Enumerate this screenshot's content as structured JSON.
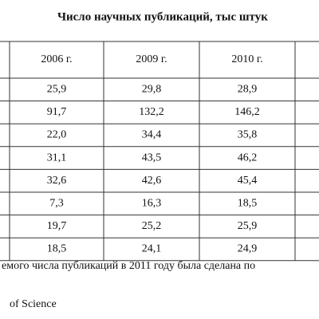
{
  "header": {
    "title": "Число научных публикаций, тыс штук"
  },
  "table": {
    "columns": [
      "2006 г.",
      "2009 г.",
      "2010 г."
    ],
    "rows": [
      [
        "25,9",
        "29,8",
        "28,9"
      ],
      [
        "91,7",
        "132,2",
        "146,2"
      ],
      [
        "22,0",
        "34,4",
        "35,8"
      ],
      [
        "31,1",
        "43,5",
        "46,2"
      ],
      [
        "32,6",
        "42,6",
        "45,4"
      ],
      [
        "7,3",
        "16,3",
        "18,5"
      ],
      [
        "19,7",
        "25,2",
        "25,9"
      ],
      [
        "18,5",
        "24,1",
        "24,9"
      ]
    ]
  },
  "footnote": {
    "lines": [
      "емого числа публикаций в 2011 году была сделана по",
      "of Science"
    ]
  }
}
